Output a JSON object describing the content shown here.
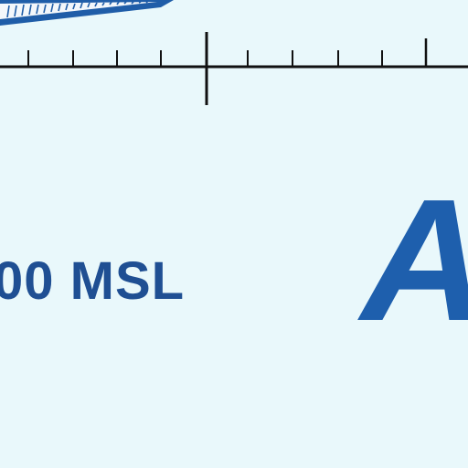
{
  "display": {
    "altitude_text": "00 MSL",
    "big_letter": "A"
  },
  "colors": {
    "background": "#e9f8fb",
    "band_blue": "#1f5da8",
    "text_blue": "#1f4f93",
    "tick_black": "#111111"
  },
  "icons": {
    "top_band": "ribbon-band-icon",
    "scale": "ruler-icon"
  }
}
